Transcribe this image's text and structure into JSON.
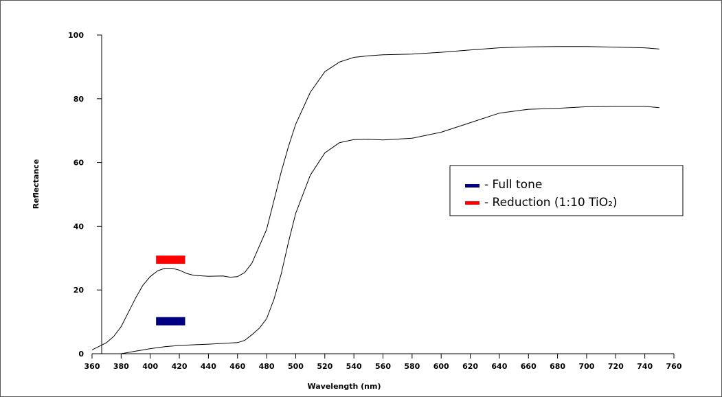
{
  "chart_data": {
    "type": "line",
    "xlabel": "Wavelength (nm)",
    "ylabel": "Reflectance",
    "xlim": [
      360,
      760
    ],
    "ylim": [
      0,
      100
    ],
    "x_ticks": [
      360,
      380,
      400,
      420,
      440,
      460,
      480,
      500,
      520,
      540,
      560,
      580,
      600,
      620,
      640,
      660,
      680,
      700,
      720,
      740,
      760
    ],
    "y_ticks": [
      0,
      20,
      40,
      60,
      80,
      100
    ],
    "grid": false,
    "legend_position": "right",
    "legend": [
      {
        "label": "- Full tone",
        "color": "#000080"
      },
      {
        "label": "- Reduction (1:10 TiO₂)",
        "color": "#ff0000"
      }
    ],
    "markers": [
      {
        "color": "#ff0000",
        "x": [
          404,
          424
        ],
        "y": 29.5
      },
      {
        "color": "#000080",
        "x": [
          404,
          424
        ],
        "y": 10.2
      }
    ],
    "series": [
      {
        "x": [
          360,
          370,
          375,
          380,
          385,
          390,
          395,
          400,
          405,
          410,
          415,
          420,
          425,
          430,
          440,
          450,
          455,
          460,
          465,
          470,
          480,
          485,
          490,
          495,
          500,
          510,
          520,
          530,
          540,
          550,
          560,
          580,
          600,
          620,
          640,
          660,
          680,
          700,
          720,
          740,
          750
        ],
        "y": [
          1.2,
          3.5,
          5.5,
          8.5,
          13,
          17.5,
          21.5,
          24.2,
          26,
          26.8,
          26.8,
          26.2,
          25.2,
          24.6,
          24.3,
          24.4,
          24,
          24.2,
          25.5,
          28.5,
          39,
          48,
          57,
          65,
          72,
          82,
          88.5,
          91.5,
          93,
          93.5,
          93.8,
          94,
          94.6,
          95.3,
          96,
          96.3,
          96.4,
          96.4,
          96.2,
          96,
          95.6
        ]
      },
      {
        "x": [
          380,
          390,
          400,
          410,
          420,
          440,
          460,
          465,
          470,
          475,
          480,
          485,
          490,
          495,
          500,
          510,
          520,
          530,
          540,
          550,
          560,
          580,
          600,
          620,
          640,
          660,
          680,
          700,
          720,
          740,
          750
        ],
        "y": [
          0,
          0.8,
          1.6,
          2.2,
          2.6,
          3,
          3.5,
          4.2,
          6,
          8,
          11,
          17,
          25,
          35,
          44,
          56,
          63,
          66.2,
          67.2,
          67.3,
          67.1,
          67.6,
          69.5,
          72.5,
          75.5,
          76.7,
          77,
          77.5,
          77.6,
          77.6,
          77.2
        ]
      }
    ]
  }
}
